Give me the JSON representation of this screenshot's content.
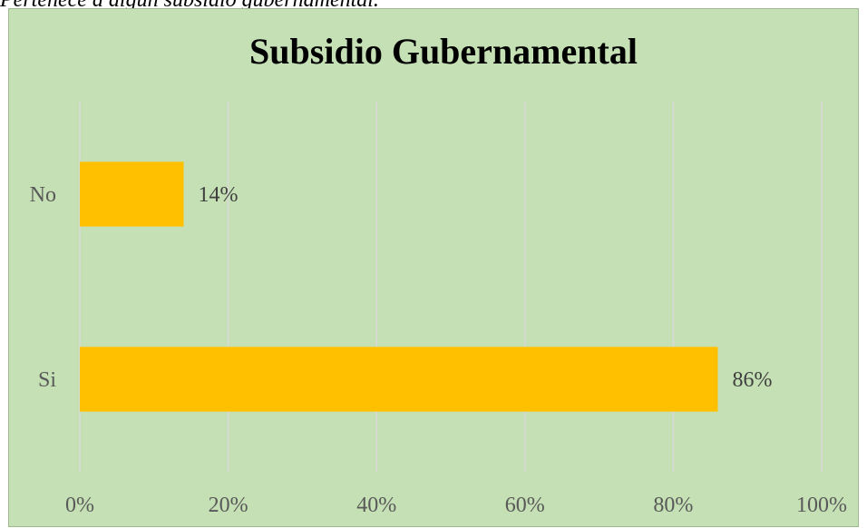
{
  "caption": "Pertenece a algún subsidio gubernamental.",
  "chart_data": {
    "type": "bar",
    "orientation": "horizontal",
    "title": "Subsidio Gubernamental",
    "categories": [
      "No",
      "Si"
    ],
    "values": [
      14,
      86
    ],
    "data_labels": [
      "14%",
      "86%"
    ],
    "xlim": [
      0,
      100
    ],
    "x_ticks": [
      "0%",
      "20%",
      "40%",
      "60%",
      "80%",
      "100%"
    ],
    "grid": true,
    "legend": "none",
    "colors": {
      "bar": "#ffc000",
      "background": "#c5e0b4",
      "grid": "#d9d9d9"
    }
  }
}
